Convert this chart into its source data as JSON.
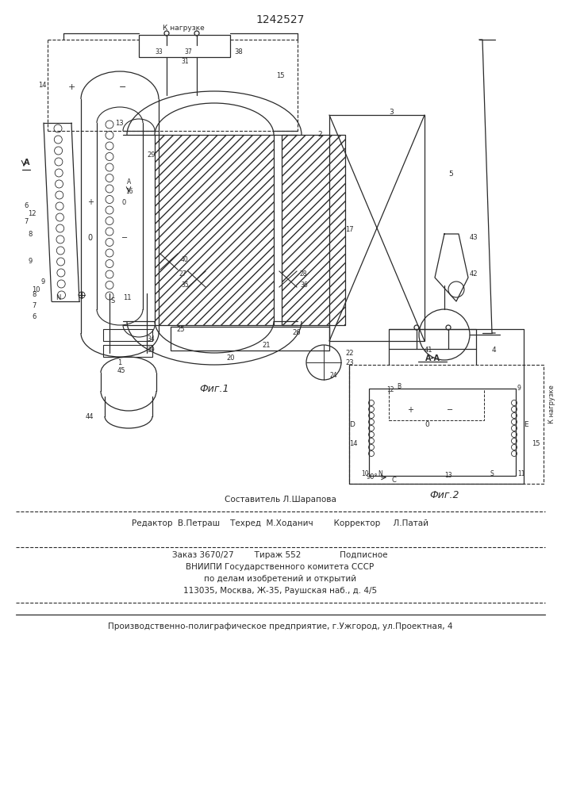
{
  "title": "1242527",
  "bg_color": "#ffffff",
  "line_color": "#2a2a2a",
  "fig1_caption": "Фиг.1",
  "fig2_caption": "Фиг.2",
  "aa_caption": "А-А",
  "k_nagruzke": "К нагрузке",
  "footer1": "Составитель Л.Шарапова",
  "footer2": "Редактор  В.Петраш    Техред  М.Ходанич        Корректор     Л.Патай",
  "footer3": "Заказ 3670/27        Тираж 552               Подписное",
  "footer4": "ВНИИПИ Государственного комитета СССР",
  "footer5": "по делам изобретений и открытий",
  "footer6": "113035, Москва, Ж-35, Раушская наб., д. 4/5",
  "footer7": "Производственно-полиграфическое предприятие, г.Ужгород, ул.Проектная, 4"
}
